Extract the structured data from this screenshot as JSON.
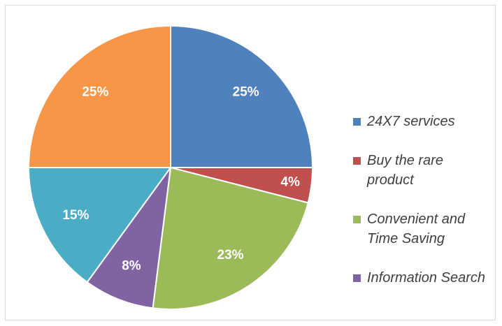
{
  "chart_data": {
    "type": "pie",
    "categories": [
      "24X7 services",
      "Buy the rare product",
      "Convenient and Time Saving",
      "Information Search",
      null,
      null
    ],
    "values": [
      25,
      4,
      23,
      8,
      15,
      25
    ],
    "value_labels": [
      "25%",
      "4%",
      "23%",
      "8%",
      "15%",
      "25%"
    ],
    "colors": [
      "#4f81bd",
      "#c0504d",
      "#9bbb59",
      "#8064a2",
      "#4bacc6",
      "#f79646"
    ]
  }
}
